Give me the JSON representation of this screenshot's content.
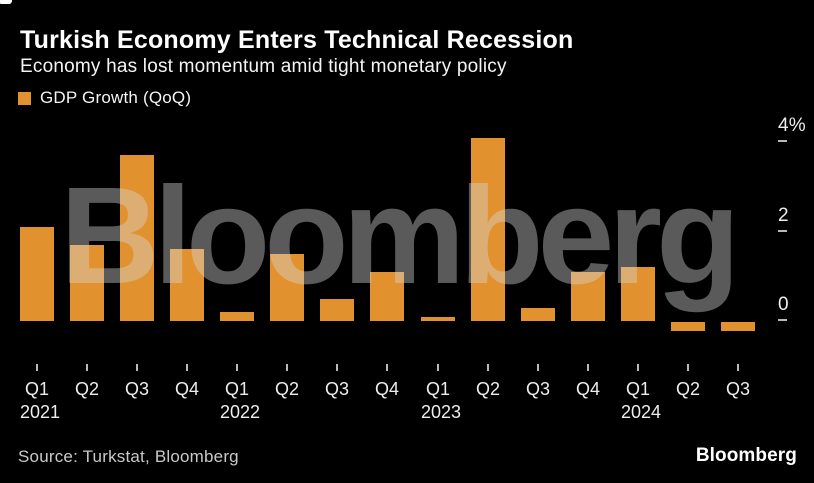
{
  "header": {
    "title": "Turkish Economy Enters Technical Recession",
    "subtitle": "Economy has lost momentum amid tight monetary policy"
  },
  "legend": {
    "label": "GDP Growth (QoQ)"
  },
  "watermark": "Bloomberg",
  "footer": {
    "source": "Source: Turkstat, Bloomberg",
    "logo": "Bloomberg"
  },
  "colors": {
    "background": "#000000",
    "bar": "#E1912E",
    "watermark": "rgba(214,214,214,0.42)",
    "axis_text": "#EDEDED",
    "tick_dash": "#B9B9B9",
    "source_text": "#C9C9C9"
  },
  "chart_data": {
    "type": "bar",
    "title": "Turkish Economy Enters Technical Recession",
    "subtitle": "Economy has lost momentum amid tight monetary policy",
    "series_name": "GDP Growth (QoQ)",
    "categories": [
      "Q1 2021",
      "Q2 2021",
      "Q3 2021",
      "Q4 2021",
      "Q1 2022",
      "Q2 2022",
      "Q3 2022",
      "Q4 2022",
      "Q1 2023",
      "Q2 2023",
      "Q3 2023",
      "Q4 2023",
      "Q1 2024",
      "Q2 2024",
      "Q3 2024"
    ],
    "values": [
      2.1,
      1.7,
      3.7,
      1.6,
      0.2,
      1.5,
      0.5,
      1.1,
      0.1,
      4.1,
      0.3,
      1.1,
      1.2,
      -0.2,
      -0.2
    ],
    "x_tick_labels": [
      "Q1",
      "Q2",
      "Q3",
      "Q4",
      "Q1",
      "Q2",
      "Q3",
      "Q4",
      "Q1",
      "Q2",
      "Q3",
      "Q4",
      "Q1",
      "Q2",
      "Q3"
    ],
    "year_labels": [
      {
        "label": "2021",
        "index": 0
      },
      {
        "label": "2022",
        "index": 4
      },
      {
        "label": "2023",
        "index": 8
      },
      {
        "label": "2024",
        "index": 12
      }
    ],
    "y_ticks": [
      {
        "label": "4%",
        "value": 4
      },
      {
        "label": "2",
        "value": 2
      },
      {
        "label": "0",
        "value": 0
      }
    ],
    "ylim": [
      -0.55,
      4.3
    ],
    "xlabel": "",
    "ylabel": "",
    "grid": false,
    "legend_position": "top-left",
    "units": "percent QoQ"
  }
}
